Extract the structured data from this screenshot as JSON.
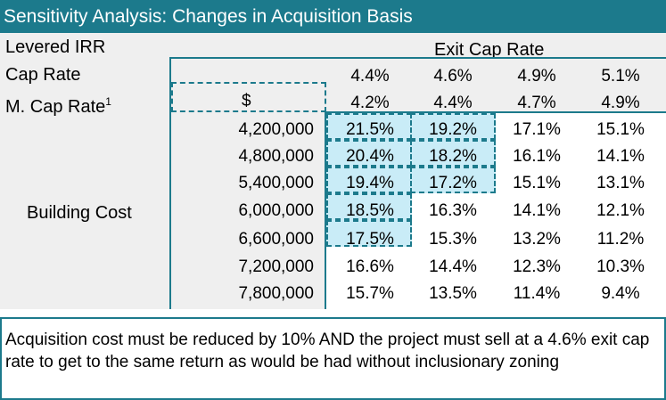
{
  "title": "Sensitivity Analysis: Changes in Acquisition Basis",
  "labels": {
    "levered_irr": "Levered IRR",
    "exit_cap_rate": "Exit Cap Rate",
    "cap_rate": "Cap Rate",
    "m_cap_rate": "M. Cap Rate",
    "m_cap_rate_sup": "1",
    "currency": "$",
    "building_cost": "Building Cost"
  },
  "cap_rates": [
    "4.4%",
    "4.6%",
    "4.9%",
    "5.1%"
  ],
  "m_cap_rates": [
    "4.2%",
    "4.4%",
    "4.7%",
    "4.9%"
  ],
  "rows": [
    {
      "cost": "4,200,000",
      "values": [
        "21.5%",
        "19.2%",
        "17.1%",
        "15.1%"
      ]
    },
    {
      "cost": "4,800,000",
      "values": [
        "20.4%",
        "18.2%",
        "16.1%",
        "14.1%"
      ]
    },
    {
      "cost": "5,400,000",
      "values": [
        "19.4%",
        "17.2%",
        "15.1%",
        "13.1%"
      ]
    },
    {
      "cost": "6,000,000",
      "values": [
        "18.5%",
        "16.3%",
        "14.1%",
        "12.1%"
      ]
    },
    {
      "cost": "6,600,000",
      "values": [
        "17.5%",
        "15.3%",
        "13.2%",
        "11.2%"
      ]
    },
    {
      "cost": "7,200,000",
      "values": [
        "16.6%",
        "14.4%",
        "12.3%",
        "10.3%"
      ]
    },
    {
      "cost": "7,800,000",
      "values": [
        "15.7%",
        "13.5%",
        "11.4%",
        "9.4%"
      ]
    }
  ],
  "note": "Acquisition cost must be reduced by 10% AND the project must sell at a 4.6% exit cap rate to get to the same return as would be had without inclusionary zoning",
  "colors": {
    "accent": "#1c7a8c",
    "highlight": "#c9ecf7",
    "panel": "#efefef"
  }
}
